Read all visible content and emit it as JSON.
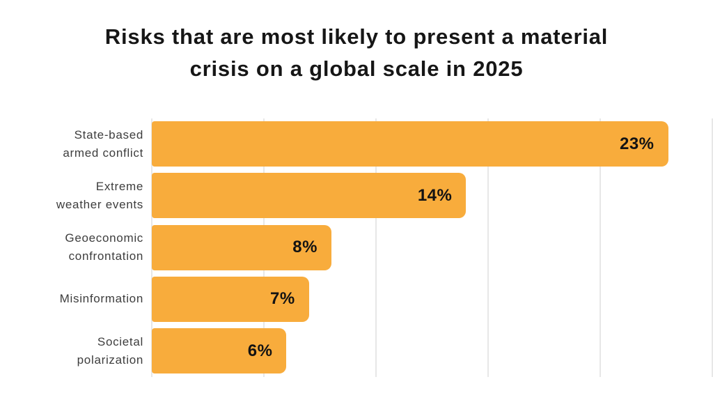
{
  "chart_data": {
    "type": "bar",
    "orientation": "horizontal",
    "title": "Risks that are most likely to present a material crisis on a global scale in 2025",
    "title_lines": [
      "Risks that are most likely to present a material",
      "crisis on a global scale in 2025"
    ],
    "categories": [
      "State-based armed conflict",
      "Extreme weather events",
      "Geoeconomic confrontation",
      "Misinformation",
      "Societal polarization"
    ],
    "category_lines": [
      [
        "State-based",
        "armed conflict"
      ],
      [
        "Extreme",
        "weather events"
      ],
      [
        "Geoeconomic",
        "confrontation"
      ],
      [
        "Misinformation",
        ""
      ],
      [
        "Societal",
        "polarization"
      ]
    ],
    "values": [
      23,
      14,
      8,
      7,
      6
    ],
    "value_labels": [
      "23%",
      "14%",
      "8%",
      "7%",
      "6%"
    ],
    "xlabel": "",
    "ylabel": "",
    "xlim": [
      0,
      25
    ],
    "gridline_interval": 5,
    "grid": "vertical-on",
    "legend": "none",
    "colors": {
      "bar": "#f8ac3c",
      "gridline": "#e7e7e7",
      "title_text": "#161616",
      "label_text": "#3d3d3d",
      "value_text": "#131313",
      "background": "#ffffff"
    }
  }
}
